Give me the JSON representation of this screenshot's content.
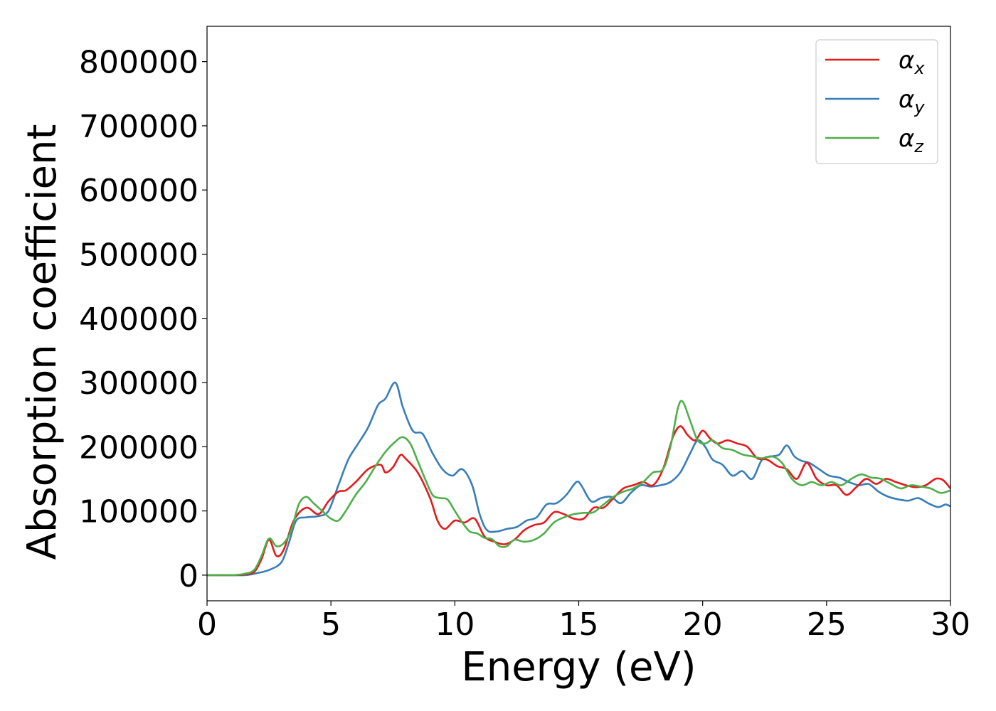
{
  "chart_data": {
    "type": "line",
    "xlabel": "Energy (eV)",
    "ylabel": "Absorption coefficient",
    "xlim": [
      0,
      30
    ],
    "ylim": [
      -40000,
      855000
    ],
    "xticks": [
      0,
      5,
      10,
      15,
      20,
      25,
      30
    ],
    "xtick_labels": [
      "0",
      "5",
      "10",
      "15",
      "20",
      "25",
      "30"
    ],
    "yticks": [
      0,
      100000,
      200000,
      300000,
      400000,
      500000,
      600000,
      700000,
      800000
    ],
    "ytick_labels": [
      "0",
      "100000",
      "200000",
      "300000",
      "400000",
      "500000",
      "600000",
      "700000",
      "800000"
    ],
    "grid": false,
    "legend_position": "top-right",
    "series": [
      {
        "name": "αx",
        "symbol": "α",
        "subscript": "x",
        "color": "#e41a1c",
        "x": [
          0,
          1.0,
          1.5,
          1.9,
          2.2,
          2.5,
          2.8,
          3.1,
          3.5,
          4.0,
          4.5,
          4.9,
          5.3,
          5.6,
          6.0,
          6.5,
          7.0,
          7.2,
          7.5,
          7.8,
          8.0,
          8.5,
          9.0,
          9.3,
          9.6,
          10.0,
          10.4,
          10.8,
          11.2,
          11.6,
          12.0,
          12.4,
          12.8,
          13.2,
          13.6,
          14.0,
          14.4,
          14.8,
          15.2,
          15.6,
          16.0,
          16.4,
          16.8,
          17.2,
          17.6,
          18.0,
          18.4,
          18.8,
          19.1,
          19.4,
          19.7,
          20.0,
          20.3,
          20.6,
          21.0,
          21.4,
          21.8,
          22.2,
          22.6,
          23.0,
          23.4,
          23.8,
          24.2,
          24.6,
          25.0,
          25.4,
          25.8,
          26.2,
          26.6,
          27.0,
          27.4,
          27.8,
          28.2,
          28.6,
          29.0,
          29.4,
          29.7,
          30.0
        ],
        "y": [
          0,
          0,
          1000,
          5000,
          25000,
          55000,
          30000,
          40000,
          85000,
          105000,
          95000,
          115000,
          130000,
          132000,
          145000,
          165000,
          172000,
          160000,
          168000,
          187000,
          182000,
          160000,
          120000,
          85000,
          72000,
          85000,
          82000,
          88000,
          60000,
          52000,
          48000,
          55000,
          70000,
          78000,
          82000,
          98000,
          95000,
          88000,
          88000,
          105000,
          105000,
          120000,
          135000,
          140000,
          145000,
          140000,
          165000,
          215000,
          232000,
          218000,
          210000,
          225000,
          213000,
          205000,
          210000,
          205000,
          200000,
          182000,
          180000,
          170000,
          165000,
          150000,
          175000,
          150000,
          140000,
          140000,
          125000,
          137000,
          150000,
          142000,
          150000,
          145000,
          140000,
          137000,
          140000,
          150000,
          148000,
          135000
        ]
      },
      {
        "name": "αy",
        "symbol": "α",
        "subscript": "y",
        "color": "#377eb8",
        "x": [
          0,
          1.5,
          2.0,
          2.5,
          3.0,
          3.3,
          3.6,
          4.0,
          4.5,
          4.9,
          5.3,
          5.7,
          6.1,
          6.5,
          6.9,
          7.2,
          7.6,
          7.9,
          8.3,
          8.7,
          9.1,
          9.5,
          9.9,
          10.3,
          10.7,
          11.0,
          11.3,
          11.7,
          12.1,
          12.5,
          12.9,
          13.3,
          13.7,
          14.1,
          14.5,
          14.9,
          15.1,
          15.5,
          15.9,
          16.3,
          16.7,
          17.1,
          17.5,
          17.9,
          18.3,
          18.7,
          19.1,
          19.5,
          19.8,
          20.1,
          20.4,
          20.8,
          21.2,
          21.6,
          22.0,
          22.4,
          22.8,
          23.1,
          23.4,
          23.7,
          24.0,
          24.3,
          24.7,
          25.1,
          25.5,
          25.9,
          26.3,
          26.7,
          27.1,
          27.5,
          27.9,
          28.3,
          28.7,
          29.1,
          29.5,
          29.8,
          30.0
        ],
        "y": [
          0,
          0,
          3000,
          8000,
          20000,
          50000,
          85000,
          90000,
          92000,
          100000,
          140000,
          180000,
          205000,
          230000,
          265000,
          275000,
          300000,
          262000,
          225000,
          220000,
          190000,
          165000,
          155000,
          165000,
          140000,
          95000,
          70000,
          68000,
          72000,
          75000,
          85000,
          90000,
          110000,
          112000,
          125000,
          145000,
          140000,
          115000,
          120000,
          122000,
          112000,
          128000,
          140000,
          138000,
          140000,
          145000,
          160000,
          190000,
          210000,
          200000,
          180000,
          172000,
          155000,
          162000,
          150000,
          180000,
          185000,
          188000,
          202000,
          185000,
          178000,
          175000,
          165000,
          155000,
          152000,
          145000,
          140000,
          142000,
          130000,
          122000,
          118000,
          116000,
          120000,
          112000,
          106000,
          110000,
          107000
        ]
      },
      {
        "name": "αz",
        "symbol": "α",
        "subscript": "z",
        "color": "#4daf4a",
        "x": [
          0,
          1.0,
          1.5,
          1.9,
          2.2,
          2.5,
          2.8,
          3.1,
          3.4,
          3.7,
          4.0,
          4.3,
          4.7,
          5.0,
          5.3,
          5.6,
          6.0,
          6.4,
          6.8,
          7.2,
          7.6,
          7.9,
          8.2,
          8.5,
          8.8,
          9.1,
          9.4,
          9.7,
          10.0,
          10.3,
          10.6,
          10.9,
          11.2,
          11.5,
          11.8,
          12.1,
          12.4,
          12.8,
          13.2,
          13.6,
          14.0,
          14.4,
          14.8,
          15.2,
          15.6,
          16.0,
          16.4,
          16.8,
          17.2,
          17.6,
          18.0,
          18.4,
          18.7,
          19.0,
          19.2,
          19.5,
          19.8,
          20.1,
          20.4,
          20.8,
          21.2,
          21.6,
          22.0,
          22.4,
          22.8,
          23.2,
          23.6,
          24.0,
          24.4,
          24.8,
          25.2,
          25.6,
          26.0,
          26.4,
          26.8,
          27.2,
          27.6,
          28.0,
          28.4,
          28.8,
          29.2,
          29.6,
          30.0
        ],
        "y": [
          0,
          0,
          2000,
          8000,
          30000,
          57000,
          45000,
          50000,
          70000,
          110000,
          122000,
          112000,
          98000,
          88000,
          85000,
          100000,
          125000,
          145000,
          170000,
          192000,
          208000,
          215000,
          205000,
          178000,
          150000,
          125000,
          120000,
          118000,
          100000,
          82000,
          68000,
          65000,
          58000,
          56000,
          45000,
          45000,
          55000,
          52000,
          55000,
          65000,
          82000,
          90000,
          95000,
          97000,
          98000,
          110000,
          122000,
          130000,
          135000,
          145000,
          160000,
          165000,
          200000,
          260000,
          270000,
          240000,
          210000,
          205000,
          210000,
          198000,
          195000,
          188000,
          185000,
          182000,
          185000,
          175000,
          150000,
          140000,
          145000,
          140000,
          145000,
          140000,
          150000,
          157000,
          152000,
          150000,
          142000,
          135000,
          140000,
          138000,
          135000,
          128000,
          132000
        ]
      }
    ]
  }
}
